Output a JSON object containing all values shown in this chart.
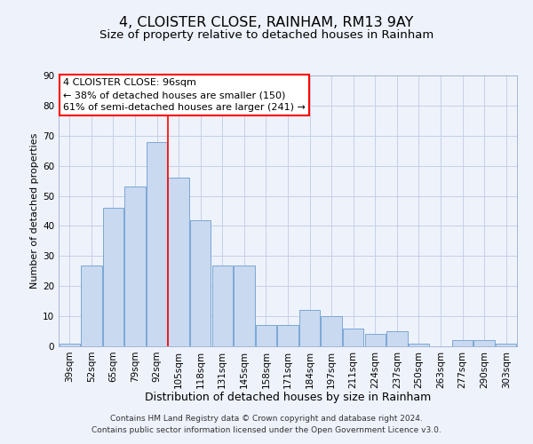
{
  "title": "4, CLOISTER CLOSE, RAINHAM, RM13 9AY",
  "subtitle": "Size of property relative to detached houses in Rainham",
  "xlabel": "Distribution of detached houses by size in Rainham",
  "ylabel": "Number of detached properties",
  "categories": [
    "39sqm",
    "52sqm",
    "65sqm",
    "79sqm",
    "92sqm",
    "105sqm",
    "118sqm",
    "131sqm",
    "145sqm",
    "158sqm",
    "171sqm",
    "184sqm",
    "197sqm",
    "211sqm",
    "224sqm",
    "237sqm",
    "250sqm",
    "263sqm",
    "277sqm",
    "290sqm",
    "303sqm"
  ],
  "values": [
    1,
    27,
    46,
    53,
    68,
    56,
    42,
    27,
    27,
    7,
    7,
    12,
    10,
    6,
    4,
    5,
    1,
    0,
    2,
    2,
    1
  ],
  "bar_color": "#c9d9f0",
  "bar_edge_color": "#7aa8d4",
  "red_line_x": 4.5,
  "ylim": [
    0,
    90
  ],
  "yticks": [
    0,
    10,
    20,
    30,
    40,
    50,
    60,
    70,
    80,
    90
  ],
  "annotation_line1": "4 CLOISTER CLOSE: 96sqm",
  "annotation_line2": "← 38% of detached houses are smaller (150)",
  "annotation_line3": "61% of semi-detached houses are larger (241) →",
  "footer_line1": "Contains HM Land Registry data © Crown copyright and database right 2024.",
  "footer_line2": "Contains public sector information licensed under the Open Government Licence v3.0.",
  "background_color": "#eef2fb",
  "grid_color": "#c5d0e8",
  "title_fontsize": 11.5,
  "subtitle_fontsize": 9.5,
  "xlabel_fontsize": 9,
  "ylabel_fontsize": 8,
  "tick_fontsize": 7.5,
  "annotation_fontsize": 8,
  "footer_fontsize": 6.5
}
